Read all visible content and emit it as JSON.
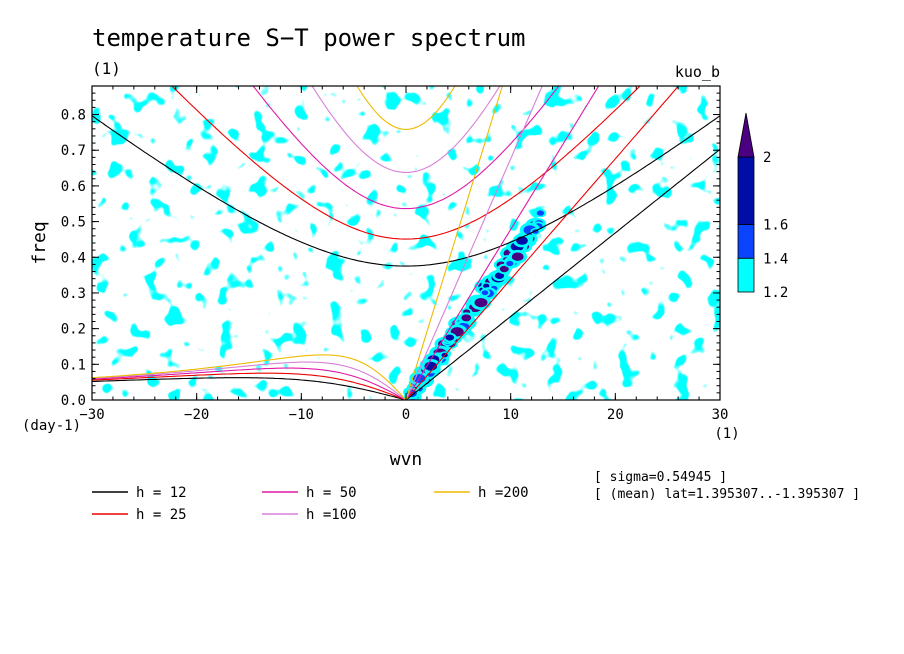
{
  "chart_data": {
    "type": "heatmap",
    "title": "temperature S−T power spectrum",
    "title_units": "(1)",
    "subtitle_right": "kuo_b",
    "xlabel": "wvn",
    "x_units": "(1)",
    "ylabel": "freq",
    "y_units": "(day-1)",
    "xlim": [
      -30,
      30
    ],
    "ylim": [
      0,
      0.88
    ],
    "x_ticks": [
      -30,
      -20,
      -10,
      0,
      10,
      20,
      30
    ],
    "x_tick_labels": [
      "−30",
      "−20",
      "−10",
      "0",
      "10",
      "20",
      "30"
    ],
    "y_ticks": [
      0.0,
      0.1,
      0.2,
      0.3,
      0.4,
      0.5,
      0.6,
      0.7,
      0.8
    ],
    "y_tick_labels": [
      "0.0",
      "0.1",
      "0.2",
      "0.3",
      "0.4",
      "0.5",
      "0.6",
      "0.7",
      "0.8"
    ],
    "colorbar": {
      "levels": [
        1.2,
        1.4,
        1.6,
        2
      ],
      "level_labels": [
        "1.2",
        "1.4",
        "1.6",
        "2"
      ],
      "colors": [
        "#00ffff",
        "#0a44ff",
        "#000da6",
        "#4b0082"
      ]
    },
    "dispersion_curves": [
      {
        "label": "h = 12",
        "h": 12,
        "color": "#000000"
      },
      {
        "label": "h = 25",
        "h": 25,
        "color": "#ee0000"
      },
      {
        "label": "h = 50",
        "h": 50,
        "color": "#e01aa8"
      },
      {
        "label": "h =100",
        "h": 100,
        "color": "#d880d8"
      },
      {
        "label": "h =200",
        "h": 200,
        "color": "#eebb00"
      }
    ],
    "annotations": [
      "[ sigma=0.54945 ]",
      "[ (mean) lat=1.395307..-1.395307 ]"
    ]
  }
}
